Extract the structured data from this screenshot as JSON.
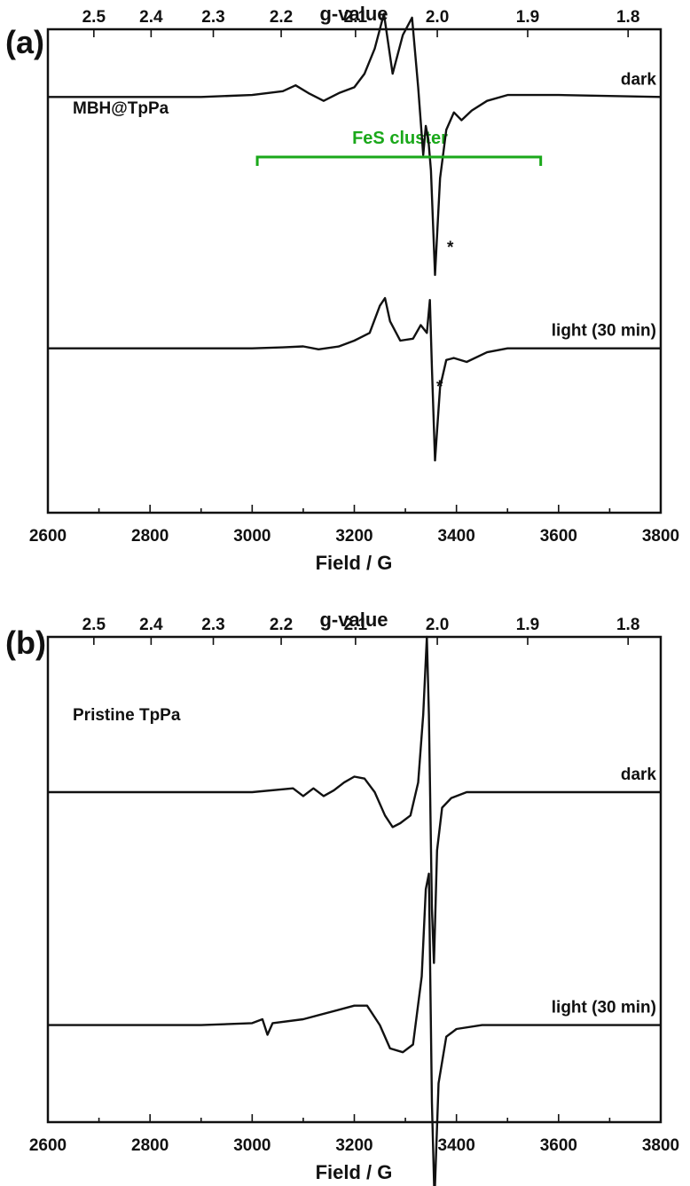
{
  "chart_data": [
    {
      "type": "line",
      "panel": "(a)",
      "sample": "MBH@TpPa",
      "xlabel": "Field / G",
      "top_axis_label": "g-value",
      "xlim": [
        2600,
        3800
      ],
      "x_ticks": [
        "2600",
        "2800",
        "3000",
        "3200",
        "3400",
        "3600",
        "3800"
      ],
      "g_ticks": [
        "2.5",
        "2.4",
        "2.3",
        "2.2",
        "2.1",
        "2.0",
        "1.9",
        "1.8"
      ],
      "g_values": [
        2.5,
        2.4,
        2.3,
        2.2,
        2.1,
        2.0,
        1.9,
        1.8
      ],
      "ylim": [
        -1.3,
        1.2
      ],
      "annotations": {
        "bracket_label": "FeS cluster",
        "bracket_range": [
          3010,
          3565
        ],
        "bracket_color": "#1aa81a",
        "asterisk": "*"
      },
      "series": [
        {
          "name": "dark",
          "offset": 0.85,
          "x": [
            2600,
            2900,
            3000,
            3060,
            3085,
            3110,
            3140,
            3170,
            3200,
            3220,
            3240,
            3258,
            3275,
            3295,
            3313,
            3325,
            3335,
            3340,
            3345,
            3350,
            3358,
            3368,
            3380,
            3395,
            3410,
            3430,
            3460,
            3500,
            3600,
            3800
          ],
          "y": [
            0,
            0,
            0.01,
            0.03,
            0.06,
            0.02,
            -0.02,
            0.02,
            0.05,
            0.12,
            0.25,
            0.43,
            0.12,
            0.32,
            0.41,
            0.05,
            -0.3,
            -0.15,
            -0.22,
            -0.38,
            -0.92,
            -0.42,
            -0.17,
            -0.08,
            -0.12,
            -0.07,
            -0.02,
            0.01,
            0.01,
            0
          ]
        },
        {
          "name": "light (30 min)",
          "offset": -0.45,
          "x": [
            2600,
            3000,
            3060,
            3100,
            3130,
            3170,
            3200,
            3230,
            3250,
            3260,
            3270,
            3290,
            3315,
            3330,
            3342,
            3348,
            3352,
            3358,
            3368,
            3380,
            3395,
            3420,
            3460,
            3500,
            3800
          ],
          "y": [
            0,
            0,
            0.005,
            0.01,
            -0.005,
            0.01,
            0.04,
            0.08,
            0.22,
            0.26,
            0.14,
            0.04,
            0.05,
            0.12,
            0.08,
            0.25,
            -0.1,
            -0.58,
            -0.2,
            -0.06,
            -0.05,
            -0.07,
            -0.02,
            0,
            0
          ]
        }
      ]
    },
    {
      "type": "line",
      "panel": "(b)",
      "sample": "Pristine TpPa",
      "xlabel": "Field / G",
      "top_axis_label": "g-value",
      "xlim": [
        2600,
        3800
      ],
      "x_ticks": [
        "2600",
        "2800",
        "3000",
        "3200",
        "3400",
        "3600",
        "3800"
      ],
      "g_ticks": [
        "2.5",
        "2.4",
        "2.3",
        "2.2",
        "2.1",
        "2.0",
        "1.9",
        "1.8"
      ],
      "g_values": [
        2.5,
        2.4,
        2.3,
        2.2,
        2.1,
        2.0,
        1.9,
        1.8
      ],
      "ylim": [
        -1.3,
        1.2
      ],
      "series": [
        {
          "name": "dark",
          "offset": 0.4,
          "x": [
            2600,
            3000,
            3080,
            3100,
            3120,
            3140,
            3160,
            3180,
            3200,
            3220,
            3240,
            3260,
            3275,
            3290,
            3310,
            3325,
            3335,
            3342,
            3346,
            3352,
            3356,
            3362,
            3372,
            3390,
            3420,
            3500,
            3800
          ],
          "y": [
            0,
            0,
            0.02,
            -0.02,
            0.02,
            -0.02,
            0.01,
            0.05,
            0.08,
            0.07,
            0,
            -0.12,
            -0.18,
            -0.16,
            -0.12,
            0.05,
            0.4,
            0.8,
            0.4,
            -0.6,
            -0.88,
            -0.3,
            -0.08,
            -0.03,
            0,
            0,
            0
          ]
        },
        {
          "name": "light (30 min)",
          "offset": -0.8,
          "x": [
            2600,
            2900,
            3000,
            3020,
            3030,
            3040,
            3100,
            3200,
            3225,
            3250,
            3270,
            3295,
            3315,
            3332,
            3340,
            3346,
            3352,
            3357,
            3365,
            3380,
            3400,
            3450,
            3800
          ],
          "y": [
            0,
            0,
            0.01,
            0.03,
            -0.05,
            0.01,
            0.03,
            0.1,
            0.1,
            0,
            -0.12,
            -0.14,
            -0.1,
            0.25,
            0.7,
            0.78,
            -0.4,
            -0.9,
            -0.3,
            -0.06,
            -0.02,
            0,
            0
          ]
        }
      ]
    }
  ]
}
